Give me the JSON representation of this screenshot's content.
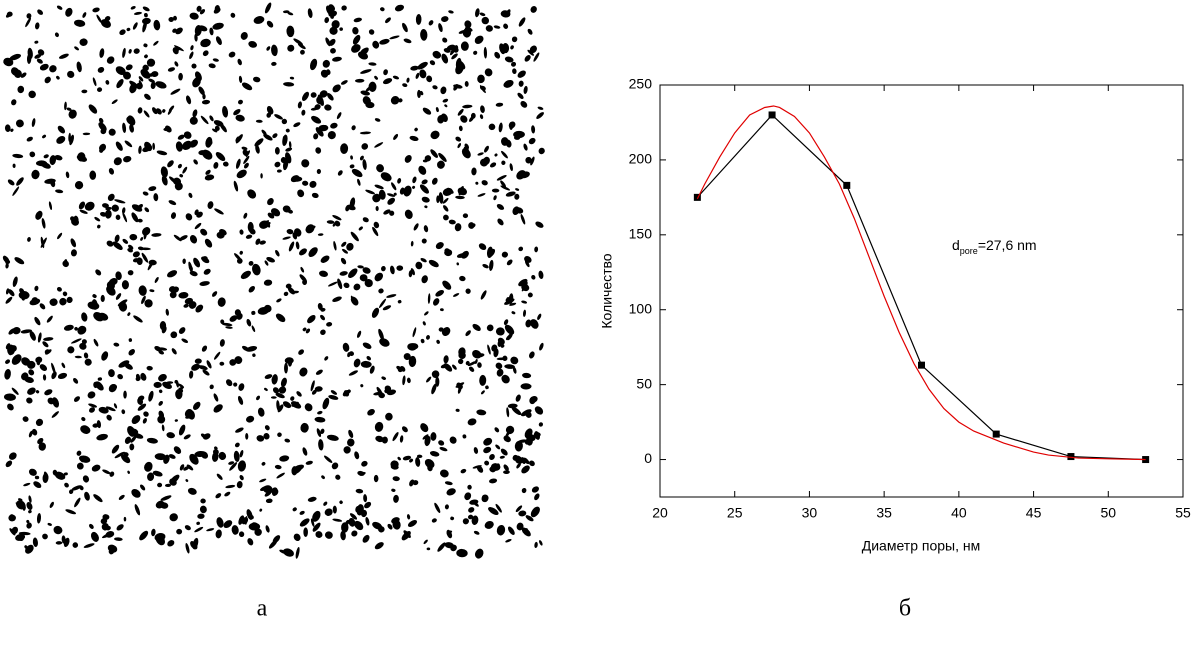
{
  "panels": {
    "left_label": "а",
    "right_label": "б"
  },
  "chart_data": {
    "type": "line",
    "x_label": "Диаметр поры, нм",
    "y_label": "Количество",
    "annotation": {
      "main": "d",
      "sub": "pore",
      "rest": "=27,6 nm"
    },
    "xlim": [
      20,
      55
    ],
    "xticks": [
      20,
      25,
      30,
      35,
      40,
      45,
      50,
      55
    ],
    "ylim": [
      -25,
      250
    ],
    "yticks": [
      0,
      50,
      100,
      150,
      200,
      250
    ],
    "series": [
      {
        "color": "#000000",
        "marker": "square",
        "x": [
          22.5,
          27.5,
          32.5,
          37.5,
          42.5,
          47.5,
          52.5
        ],
        "values": [
          175,
          230,
          183,
          63,
          17,
          2,
          0
        ]
      },
      {
        "color": "#e00000",
        "marker": "none",
        "x": [
          22.5,
          23,
          24,
          25,
          26,
          27,
          27.6,
          28,
          29,
          30,
          31,
          32,
          33,
          34,
          35,
          36,
          37,
          38,
          39,
          40,
          41,
          42,
          43,
          44,
          45,
          46,
          47,
          48,
          50,
          52.5
        ],
        "values": [
          174,
          184,
          202,
          218,
          230,
          235,
          236,
          235,
          229,
          218,
          202,
          184,
          161,
          135,
          109,
          85,
          64,
          47,
          34,
          25,
          19,
          15,
          11,
          8,
          5,
          3,
          2,
          1,
          0.5,
          0
        ]
      }
    ]
  }
}
